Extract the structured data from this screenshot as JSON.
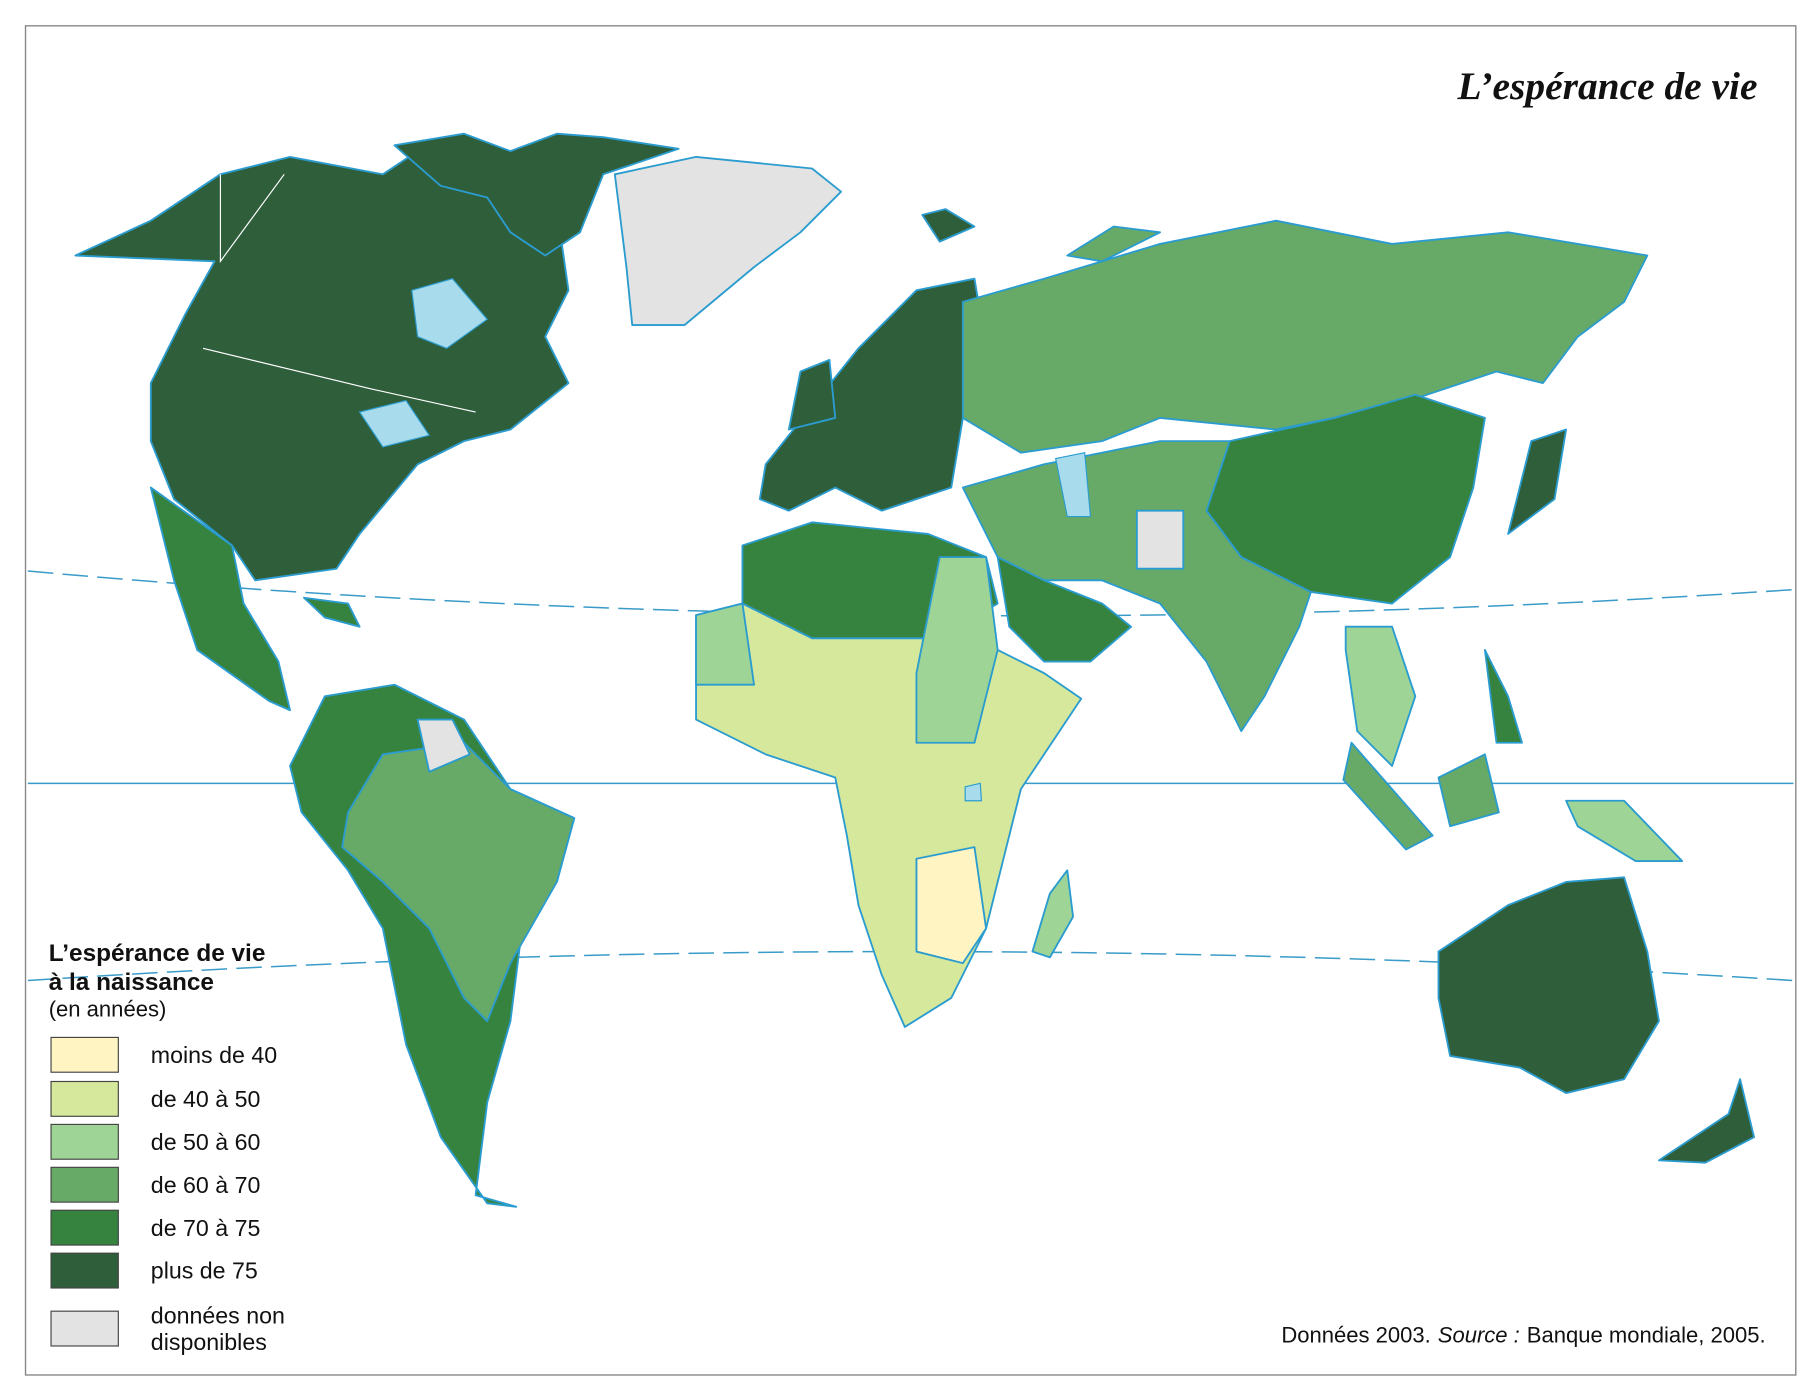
{
  "title": "L’espérance de vie",
  "legend": {
    "title_lines": [
      "L’espérance de vie",
      "à la naissance"
    ],
    "subtitle": "(en années)",
    "items": [
      {
        "lines": [
          "moins de 40"
        ],
        "color": "#fff4c2"
      },
      {
        "lines": [
          "de 40 à 50"
        ],
        "color": "#d5e89b"
      },
      {
        "lines": [
          "de 50 à 60"
        ],
        "color": "#9ed596"
      },
      {
        "lines": [
          "de 60 à 70"
        ],
        "color": "#67a966"
      },
      {
        "lines": [
          "de 70 à 75"
        ],
        "color": "#36833f"
      },
      {
        "lines": [
          "plus de 75"
        ],
        "color": "#2f5e3b"
      },
      {
        "lines": [
          "données non",
          "disponibles"
        ],
        "color": "#e3e3e3"
      }
    ]
  },
  "source": {
    "data": "Données 2003.",
    "label": "Source :",
    "text": "Banque mondiale, 2005."
  }
}
